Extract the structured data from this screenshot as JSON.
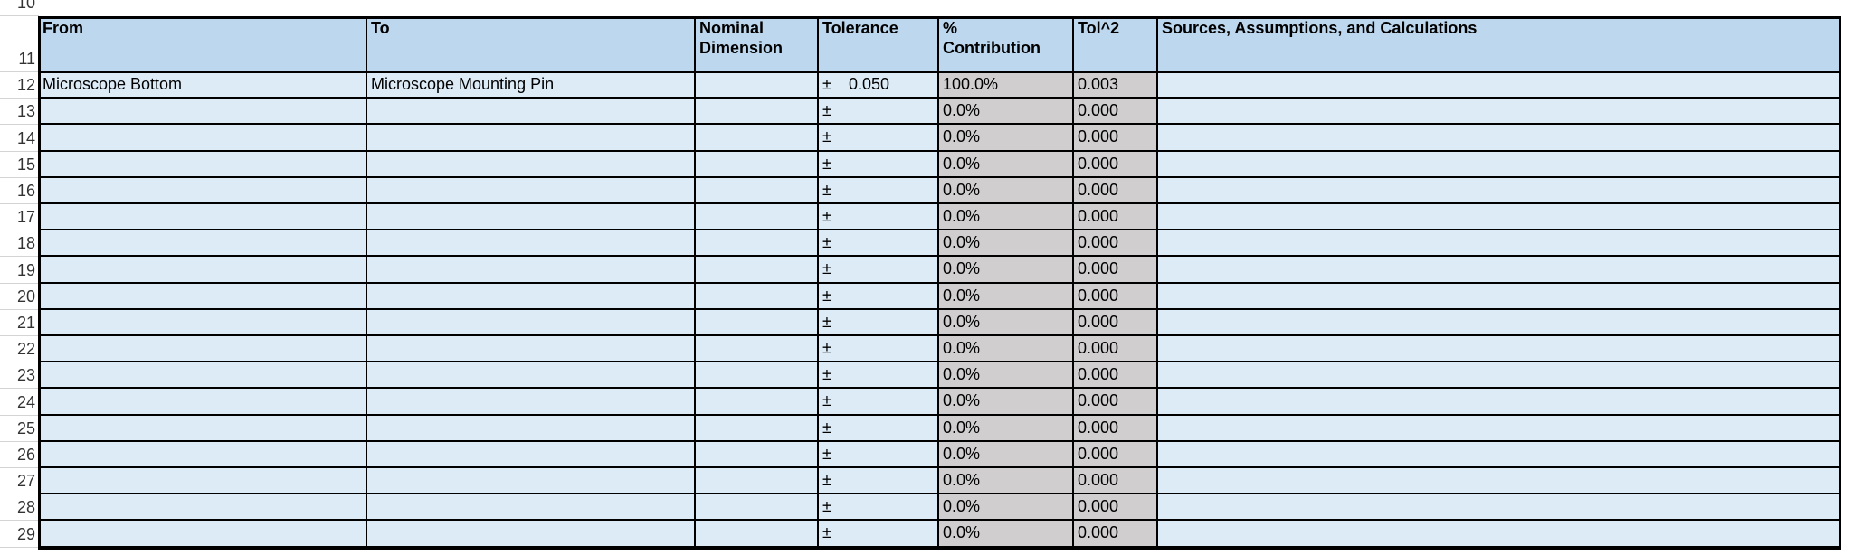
{
  "sheet": {
    "top_row": "10",
    "header": {
      "row": "11",
      "from": "From",
      "to": "To",
      "nominal": "Nominal Dimension",
      "tolerance": "Tolerance",
      "contribution": "% Contribution",
      "tol_sq": "Tol^2",
      "sources": "Sources, Assumptions, and Calculations"
    },
    "rows": [
      {
        "row": "12",
        "from": "Microscope Bottom",
        "to": "Microscope Mounting Pin",
        "tolerance_sign": "±",
        "tolerance": "0.050",
        "contribution": "100.0%",
        "tol_sq": "0.003"
      },
      {
        "row": "13",
        "tolerance_sign": "±",
        "contribution": "0.0%",
        "tol_sq": "0.000"
      },
      {
        "row": "14",
        "tolerance_sign": "±",
        "contribution": "0.0%",
        "tol_sq": "0.000"
      },
      {
        "row": "15",
        "tolerance_sign": "±",
        "contribution": "0.0%",
        "tol_sq": "0.000"
      },
      {
        "row": "16",
        "tolerance_sign": "±",
        "contribution": "0.0%",
        "tol_sq": "0.000"
      },
      {
        "row": "17",
        "tolerance_sign": "±",
        "contribution": "0.0%",
        "tol_sq": "0.000"
      },
      {
        "row": "18",
        "tolerance_sign": "±",
        "contribution": "0.0%",
        "tol_sq": "0.000"
      },
      {
        "row": "19",
        "tolerance_sign": "±",
        "contribution": "0.0%",
        "tol_sq": "0.000"
      },
      {
        "row": "20",
        "tolerance_sign": "±",
        "contribution": "0.0%",
        "tol_sq": "0.000"
      },
      {
        "row": "21",
        "tolerance_sign": "±",
        "contribution": "0.0%",
        "tol_sq": "0.000"
      },
      {
        "row": "22",
        "tolerance_sign": "±",
        "contribution": "0.0%",
        "tol_sq": "0.000"
      },
      {
        "row": "23",
        "tolerance_sign": "±",
        "contribution": "0.0%",
        "tol_sq": "0.000"
      },
      {
        "row": "24",
        "tolerance_sign": "±",
        "contribution": "0.0%",
        "tol_sq": "0.000"
      },
      {
        "row": "25",
        "tolerance_sign": "±",
        "contribution": "0.0%",
        "tol_sq": "0.000"
      },
      {
        "row": "26",
        "tolerance_sign": "±",
        "contribution": "0.0%",
        "tol_sq": "0.000"
      },
      {
        "row": "27",
        "tolerance_sign": "±",
        "contribution": "0.0%",
        "tol_sq": "0.000"
      },
      {
        "row": "28",
        "tolerance_sign": "±",
        "contribution": "0.0%",
        "tol_sq": "0.000"
      },
      {
        "row": "29",
        "tolerance_sign": "±",
        "contribution": "0.0%",
        "tol_sq": "0.000"
      }
    ]
  }
}
